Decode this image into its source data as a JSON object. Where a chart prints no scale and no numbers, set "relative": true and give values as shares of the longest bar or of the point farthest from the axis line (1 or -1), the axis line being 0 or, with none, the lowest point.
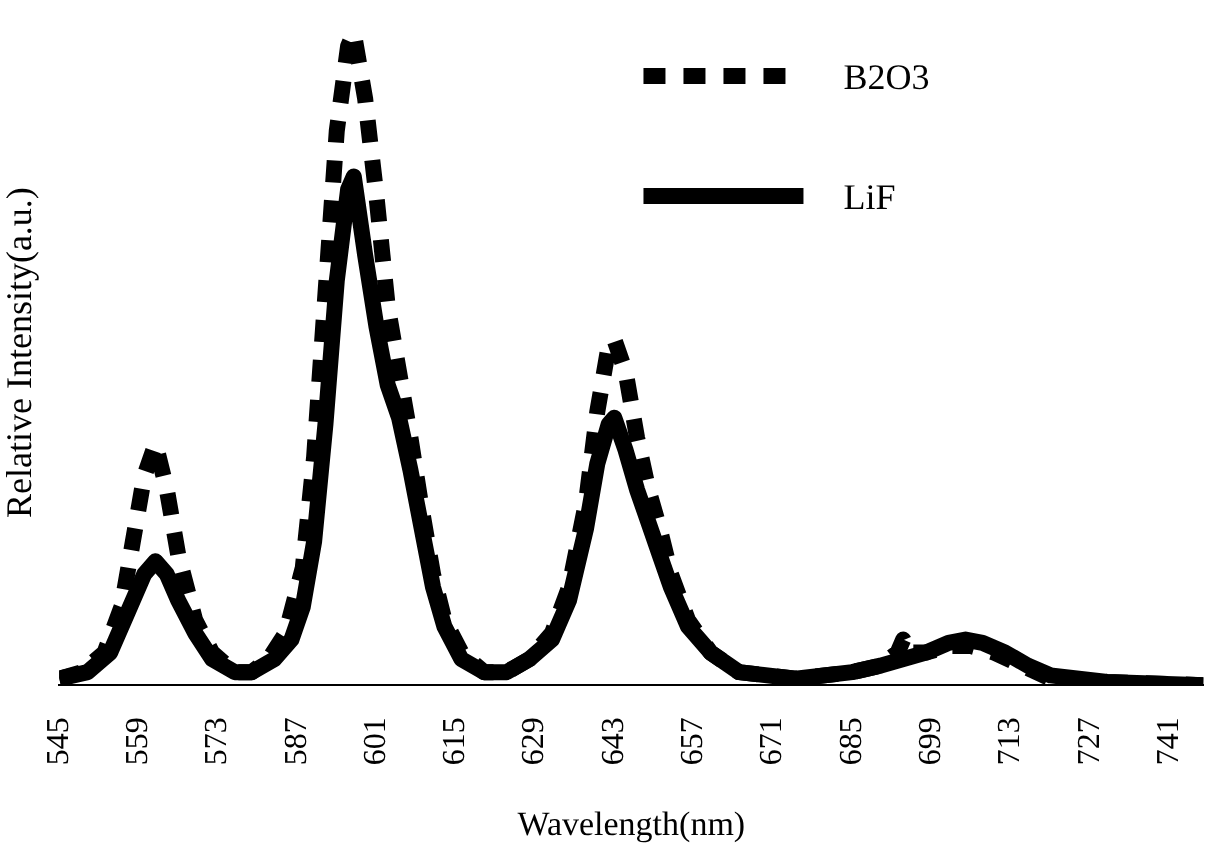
{
  "chart_data": {
    "type": "line",
    "relative": true,
    "xlabel": "Wavelength(nm)",
    "ylabel": "Relative Intensity(a.u.)",
    "xlim": [
      545,
      747
    ],
    "xticks": [
      545,
      559,
      573,
      587,
      601,
      615,
      629,
      643,
      657,
      671,
      685,
      699,
      713,
      727,
      741
    ],
    "grid": false,
    "legend": "top right",
    "marker": "none",
    "series": [
      {
        "name": "B2O3",
        "color": "#000000",
        "line_style": "dashed",
        "x": [
          545,
          549,
          553,
          556,
          558,
          560,
          562,
          564,
          566,
          569,
          572,
          576,
          579,
          582,
          585,
          588,
          590,
          592,
          594,
          596,
          597,
          599,
          601,
          603,
          605,
          607,
          609,
          611,
          613,
          616,
          620,
          624,
          628,
          632,
          635,
          638,
          640,
          642,
          643,
          645,
          647,
          649,
          651,
          653,
          656,
          660,
          665,
          675,
          685,
          690,
          693,
          694,
          695,
          698,
          702,
          706,
          710,
          715,
          720,
          730,
          747
        ],
        "values": [
          0.01,
          0.02,
          0.05,
          0.12,
          0.22,
          0.32,
          0.37,
          0.3,
          0.2,
          0.1,
          0.05,
          0.02,
          0.02,
          0.04,
          0.08,
          0.18,
          0.35,
          0.6,
          0.85,
          0.98,
          1,
          0.9,
          0.75,
          0.58,
          0.48,
          0.38,
          0.27,
          0.17,
          0.1,
          0.05,
          0.02,
          0.02,
          0.04,
          0.08,
          0.15,
          0.28,
          0.42,
          0.52,
          0.53,
          0.48,
          0.38,
          0.3,
          0.24,
          0.17,
          0.1,
          0.05,
          0.02,
          0.01,
          0.02,
          0.03,
          0.05,
          0.07,
          0.05,
          0.05,
          0.06,
          0.06,
          0.05,
          0.03,
          0.01,
          0.005,
          0
        ]
      },
      {
        "name": "LiF",
        "color": "#000000",
        "line_style": "solid",
        "x": [
          545,
          550,
          554,
          557,
          560,
          562,
          564,
          566,
          569,
          572,
          576,
          579,
          583,
          586,
          588,
          590,
          592,
          594,
          596,
          597,
          599,
          601,
          603,
          605,
          607,
          609,
          611,
          613,
          616,
          620,
          624,
          628,
          632,
          635,
          638,
          640,
          642,
          643,
          645,
          647,
          649,
          651,
          653,
          656,
          660,
          665,
          675,
          685,
          690,
          694,
          698,
          702,
          705,
          708,
          712,
          716,
          720,
          730,
          747
        ],
        "values": [
          0.01,
          0.02,
          0.05,
          0.11,
          0.17,
          0.19,
          0.17,
          0.13,
          0.08,
          0.04,
          0.02,
          0.02,
          0.04,
          0.07,
          0.12,
          0.22,
          0.4,
          0.62,
          0.76,
          0.78,
          0.66,
          0.55,
          0.46,
          0.41,
          0.33,
          0.24,
          0.15,
          0.09,
          0.04,
          0.02,
          0.02,
          0.04,
          0.07,
          0.13,
          0.24,
          0.34,
          0.4,
          0.41,
          0.36,
          0.3,
          0.25,
          0.2,
          0.15,
          0.09,
          0.05,
          0.02,
          0.01,
          0.02,
          0.03,
          0.04,
          0.05,
          0.065,
          0.07,
          0.065,
          0.05,
          0.03,
          0.015,
          0.005,
          0
        ]
      }
    ]
  }
}
